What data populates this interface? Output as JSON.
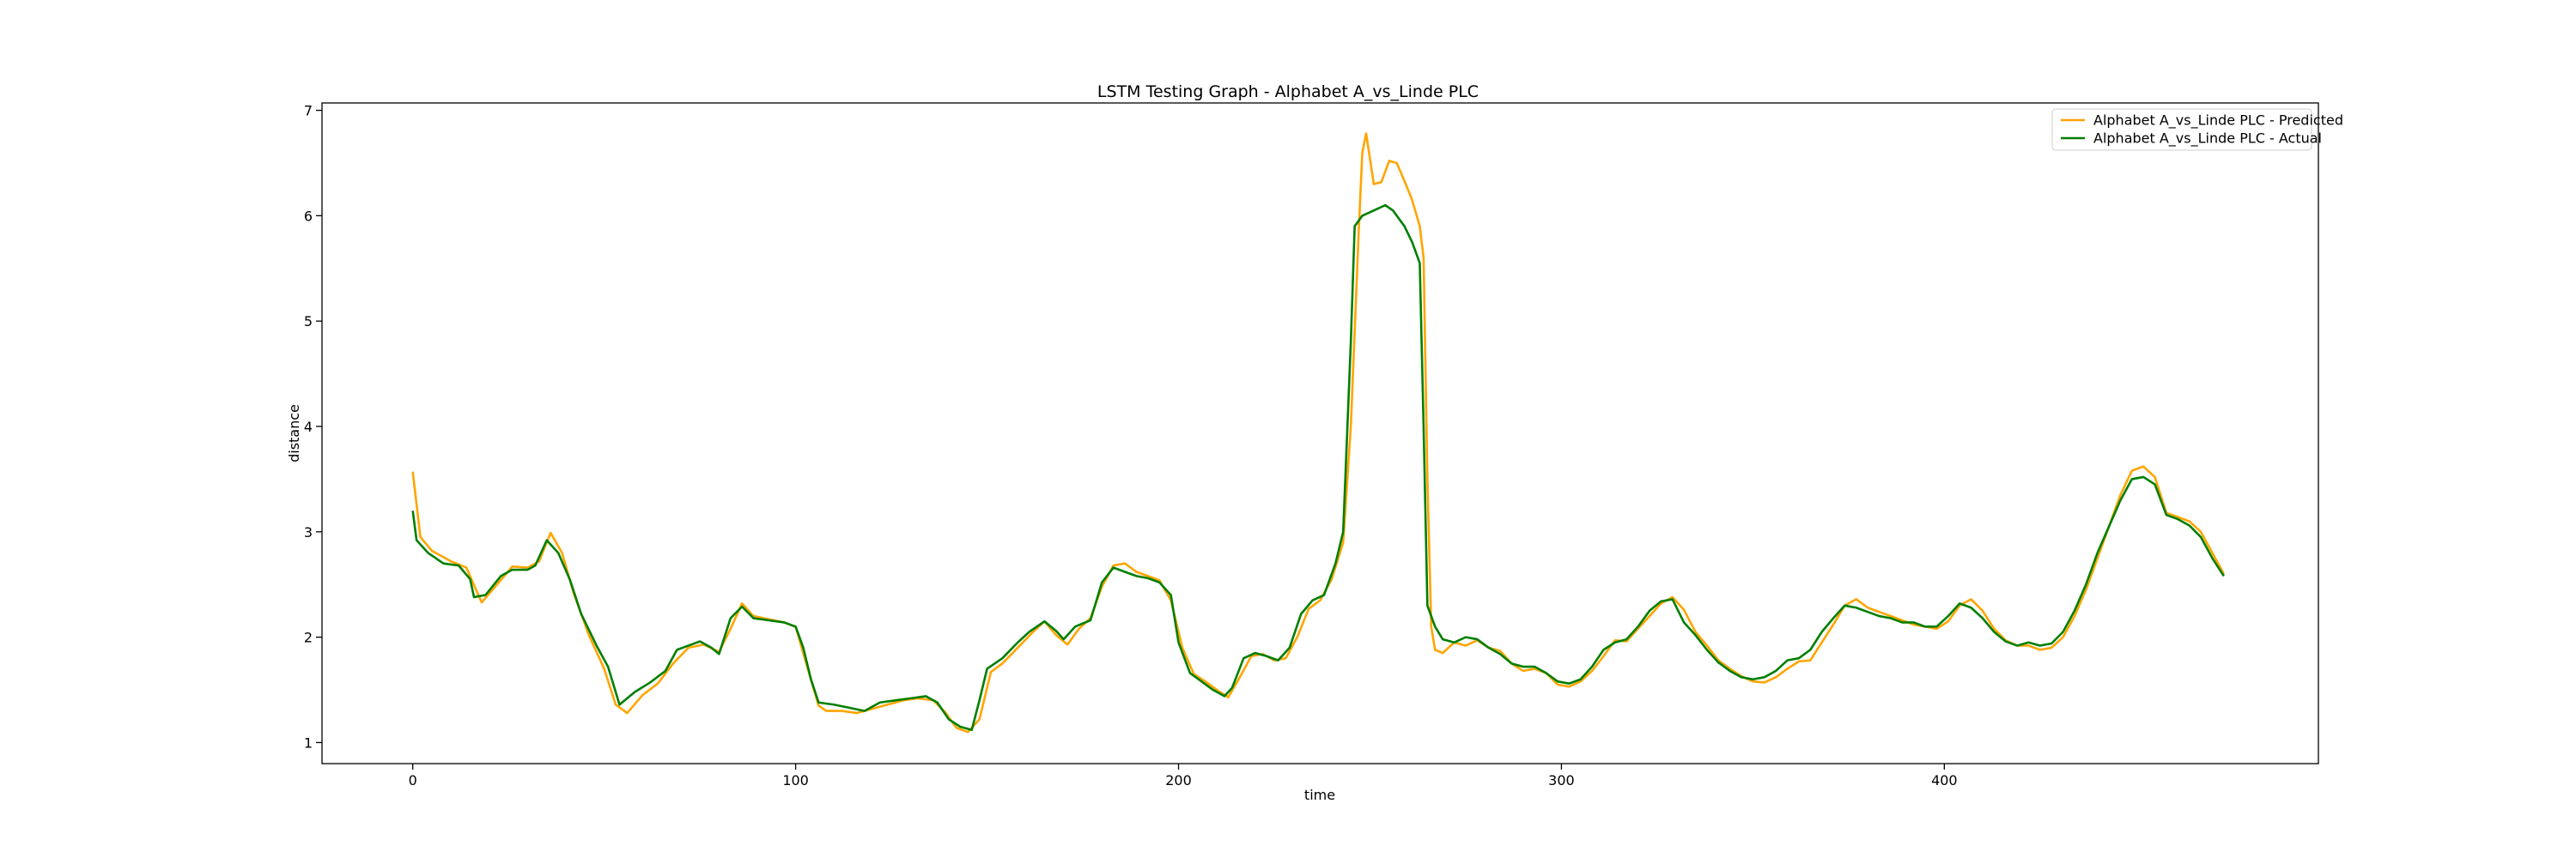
{
  "chart_data": {
    "type": "line",
    "title": "LSTM Testing Graph - Alphabet A_vs_Linde PLC",
    "xlabel": "time",
    "ylabel": "distance",
    "xlim": [
      -23.7,
      497.7
    ],
    "ylim": [
      0.8,
      7.07
    ],
    "xticks": [
      0,
      100,
      200,
      300,
      400
    ],
    "yticks": [
      1,
      2,
      3,
      4,
      5,
      6,
      7
    ],
    "grid": false,
    "legend_position": "top-right",
    "series": [
      {
        "name": "Alphabet A_vs_Linde PLC - Predicted",
        "color": "#FFA500",
        "points": [
          [
            0,
            3.57
          ],
          [
            2,
            2.95
          ],
          [
            5,
            2.82
          ],
          [
            10,
            2.72
          ],
          [
            14,
            2.66
          ],
          [
            18,
            2.33
          ],
          [
            22,
            2.5
          ],
          [
            26,
            2.67
          ],
          [
            30,
            2.66
          ],
          [
            33,
            2.72
          ],
          [
            36,
            2.99
          ],
          [
            39,
            2.8
          ],
          [
            42,
            2.42
          ],
          [
            46,
            2.02
          ],
          [
            50,
            1.7
          ],
          [
            53,
            1.36
          ],
          [
            56,
            1.28
          ],
          [
            60,
            1.45
          ],
          [
            64,
            1.56
          ],
          [
            68,
            1.75
          ],
          [
            72,
            1.9
          ],
          [
            76,
            1.93
          ],
          [
            80,
            1.86
          ],
          [
            83,
            2.08
          ],
          [
            86,
            2.32
          ],
          [
            89,
            2.2
          ],
          [
            93,
            2.17
          ],
          [
            97,
            2.14
          ],
          [
            100,
            2.1
          ],
          [
            103,
            1.72
          ],
          [
            106,
            1.35
          ],
          [
            108,
            1.3
          ],
          [
            112,
            1.3
          ],
          [
            116,
            1.28
          ],
          [
            120,
            1.32
          ],
          [
            124,
            1.36
          ],
          [
            128,
            1.4
          ],
          [
            132,
            1.42
          ],
          [
            136,
            1.4
          ],
          [
            139,
            1.29
          ],
          [
            142,
            1.14
          ],
          [
            145,
            1.1
          ],
          [
            148,
            1.22
          ],
          [
            151,
            1.67
          ],
          [
            154,
            1.75
          ],
          [
            158,
            1.9
          ],
          [
            162,
            2.05
          ],
          [
            165,
            2.15
          ],
          [
            168,
            2.02
          ],
          [
            171,
            1.93
          ],
          [
            174,
            2.08
          ],
          [
            177,
            2.18
          ],
          [
            180,
            2.48
          ],
          [
            183,
            2.68
          ],
          [
            186,
            2.7
          ],
          [
            189,
            2.62
          ],
          [
            192,
            2.58
          ],
          [
            195,
            2.54
          ],
          [
            198,
            2.35
          ],
          [
            201,
            1.9
          ],
          [
            204,
            1.65
          ],
          [
            207,
            1.58
          ],
          [
            210,
            1.5
          ],
          [
            213,
            1.43
          ],
          [
            216,
            1.62
          ],
          [
            219,
            1.82
          ],
          [
            222,
            1.84
          ],
          [
            225,
            1.78
          ],
          [
            228,
            1.8
          ],
          [
            231,
            2.0
          ],
          [
            234,
            2.27
          ],
          [
            237,
            2.35
          ],
          [
            240,
            2.55
          ],
          [
            243,
            2.9
          ],
          [
            245,
            4.0
          ],
          [
            247,
            5.8
          ],
          [
            248,
            6.6
          ],
          [
            249,
            6.78
          ],
          [
            251,
            6.3
          ],
          [
            253,
            6.32
          ],
          [
            255,
            6.52
          ],
          [
            257,
            6.5
          ],
          [
            259,
            6.33
          ],
          [
            261,
            6.15
          ],
          [
            263,
            5.9
          ],
          [
            264,
            5.6
          ],
          [
            265,
            3.5
          ],
          [
            266,
            2.1
          ],
          [
            267,
            1.88
          ],
          [
            269,
            1.85
          ],
          [
            272,
            1.95
          ],
          [
            275,
            1.92
          ],
          [
            278,
            1.97
          ],
          [
            281,
            1.9
          ],
          [
            284,
            1.87
          ],
          [
            287,
            1.75
          ],
          [
            290,
            1.68
          ],
          [
            293,
            1.7
          ],
          [
            296,
            1.66
          ],
          [
            299,
            1.55
          ],
          [
            302,
            1.53
          ],
          [
            305,
            1.58
          ],
          [
            308,
            1.68
          ],
          [
            311,
            1.82
          ],
          [
            314,
            1.97
          ],
          [
            317,
            1.96
          ],
          [
            320,
            2.08
          ],
          [
            323,
            2.2
          ],
          [
            326,
            2.32
          ],
          [
            329,
            2.38
          ],
          [
            332,
            2.26
          ],
          [
            335,
            2.05
          ],
          [
            338,
            1.92
          ],
          [
            341,
            1.78
          ],
          [
            344,
            1.7
          ],
          [
            347,
            1.63
          ],
          [
            350,
            1.58
          ],
          [
            353,
            1.57
          ],
          [
            356,
            1.62
          ],
          [
            359,
            1.7
          ],
          [
            362,
            1.77
          ],
          [
            365,
            1.78
          ],
          [
            368,
            1.95
          ],
          [
            371,
            2.12
          ],
          [
            374,
            2.3
          ],
          [
            377,
            2.36
          ],
          [
            380,
            2.28
          ],
          [
            383,
            2.24
          ],
          [
            386,
            2.2
          ],
          [
            389,
            2.16
          ],
          [
            392,
            2.12
          ],
          [
            395,
            2.1
          ],
          [
            398,
            2.08
          ],
          [
            401,
            2.15
          ],
          [
            404,
            2.3
          ],
          [
            407,
            2.36
          ],
          [
            410,
            2.25
          ],
          [
            413,
            2.08
          ],
          [
            416,
            1.97
          ],
          [
            419,
            1.92
          ],
          [
            422,
            1.92
          ],
          [
            425,
            1.88
          ],
          [
            428,
            1.9
          ],
          [
            431,
            2.0
          ],
          [
            434,
            2.2
          ],
          [
            437,
            2.45
          ],
          [
            440,
            2.75
          ],
          [
            443,
            3.05
          ],
          [
            446,
            3.35
          ],
          [
            449,
            3.58
          ],
          [
            452,
            3.62
          ],
          [
            455,
            3.52
          ],
          [
            458,
            3.18
          ],
          [
            461,
            3.14
          ],
          [
            464,
            3.1
          ],
          [
            467,
            3.0
          ],
          [
            470,
            2.8
          ],
          [
            473,
            2.6
          ]
        ]
      },
      {
        "name": "Alphabet A_vs_Linde PLC - Actual",
        "color": "#007F00",
        "points": [
          [
            0,
            3.2
          ],
          [
            1,
            2.92
          ],
          [
            4,
            2.8
          ],
          [
            8,
            2.7
          ],
          [
            12,
            2.68
          ],
          [
            15,
            2.55
          ],
          [
            16,
            2.38
          ],
          [
            19,
            2.4
          ],
          [
            23,
            2.58
          ],
          [
            26,
            2.64
          ],
          [
            30,
            2.64
          ],
          [
            32,
            2.68
          ],
          [
            35,
            2.92
          ],
          [
            38,
            2.8
          ],
          [
            41,
            2.55
          ],
          [
            44,
            2.22
          ],
          [
            48,
            1.92
          ],
          [
            51,
            1.72
          ],
          [
            54,
            1.36
          ],
          [
            58,
            1.48
          ],
          [
            62,
            1.57
          ],
          [
            66,
            1.68
          ],
          [
            69,
            1.88
          ],
          [
            72,
            1.92
          ],
          [
            75,
            1.96
          ],
          [
            78,
            1.9
          ],
          [
            80,
            1.84
          ],
          [
            83,
            2.18
          ],
          [
            86,
            2.29
          ],
          [
            89,
            2.18
          ],
          [
            93,
            2.16
          ],
          [
            97,
            2.14
          ],
          [
            100,
            2.1
          ],
          [
            102,
            1.9
          ],
          [
            104,
            1.6
          ],
          [
            106,
            1.38
          ],
          [
            110,
            1.36
          ],
          [
            114,
            1.33
          ],
          [
            118,
            1.3
          ],
          [
            122,
            1.38
          ],
          [
            126,
            1.4
          ],
          [
            130,
            1.42
          ],
          [
            134,
            1.44
          ],
          [
            137,
            1.38
          ],
          [
            140,
            1.22
          ],
          [
            143,
            1.15
          ],
          [
            146,
            1.12
          ],
          [
            148,
            1.4
          ],
          [
            150,
            1.7
          ],
          [
            154,
            1.8
          ],
          [
            158,
            1.95
          ],
          [
            161,
            2.05
          ],
          [
            165,
            2.15
          ],
          [
            168,
            2.06
          ],
          [
            170,
            1.98
          ],
          [
            173,
            2.1
          ],
          [
            177,
            2.16
          ],
          [
            180,
            2.52
          ],
          [
            183,
            2.66
          ],
          [
            186,
            2.62
          ],
          [
            189,
            2.58
          ],
          [
            192,
            2.56
          ],
          [
            195,
            2.52
          ],
          [
            198,
            2.4
          ],
          [
            200,
            1.95
          ],
          [
            203,
            1.66
          ],
          [
            206,
            1.58
          ],
          [
            209,
            1.5
          ],
          [
            212,
            1.44
          ],
          [
            214,
            1.52
          ],
          [
            217,
            1.8
          ],
          [
            220,
            1.85
          ],
          [
            223,
            1.82
          ],
          [
            226,
            1.78
          ],
          [
            229,
            1.9
          ],
          [
            232,
            2.22
          ],
          [
            235,
            2.35
          ],
          [
            238,
            2.4
          ],
          [
            241,
            2.7
          ],
          [
            243,
            3.0
          ],
          [
            245,
            4.8
          ],
          [
            246,
            5.9
          ],
          [
            248,
            6.0
          ],
          [
            251,
            6.05
          ],
          [
            254,
            6.1
          ],
          [
            256,
            6.05
          ],
          [
            259,
            5.9
          ],
          [
            261,
            5.75
          ],
          [
            263,
            5.55
          ],
          [
            264,
            4.0
          ],
          [
            265,
            2.3
          ],
          [
            267,
            2.1
          ],
          [
            269,
            1.98
          ],
          [
            272,
            1.95
          ],
          [
            275,
            2.0
          ],
          [
            278,
            1.98
          ],
          [
            281,
            1.9
          ],
          [
            284,
            1.84
          ],
          [
            287,
            1.75
          ],
          [
            290,
            1.72
          ],
          [
            293,
            1.72
          ],
          [
            296,
            1.66
          ],
          [
            299,
            1.58
          ],
          [
            302,
            1.56
          ],
          [
            305,
            1.6
          ],
          [
            308,
            1.72
          ],
          [
            311,
            1.88
          ],
          [
            314,
            1.95
          ],
          [
            317,
            1.98
          ],
          [
            320,
            2.1
          ],
          [
            323,
            2.25
          ],
          [
            326,
            2.34
          ],
          [
            329,
            2.36
          ],
          [
            332,
            2.14
          ],
          [
            335,
            2.02
          ],
          [
            338,
            1.88
          ],
          [
            341,
            1.76
          ],
          [
            344,
            1.68
          ],
          [
            347,
            1.62
          ],
          [
            350,
            1.6
          ],
          [
            353,
            1.62
          ],
          [
            356,
            1.68
          ],
          [
            359,
            1.78
          ],
          [
            362,
            1.8
          ],
          [
            365,
            1.88
          ],
          [
            368,
            2.05
          ],
          [
            371,
            2.18
          ],
          [
            374,
            2.3
          ],
          [
            377,
            2.28
          ],
          [
            380,
            2.24
          ],
          [
            383,
            2.2
          ],
          [
            386,
            2.18
          ],
          [
            389,
            2.14
          ],
          [
            392,
            2.14
          ],
          [
            395,
            2.1
          ],
          [
            398,
            2.1
          ],
          [
            401,
            2.2
          ],
          [
            404,
            2.32
          ],
          [
            407,
            2.28
          ],
          [
            410,
            2.18
          ],
          [
            413,
            2.05
          ],
          [
            416,
            1.96
          ],
          [
            419,
            1.92
          ],
          [
            422,
            1.95
          ],
          [
            425,
            1.92
          ],
          [
            428,
            1.94
          ],
          [
            431,
            2.05
          ],
          [
            434,
            2.25
          ],
          [
            437,
            2.5
          ],
          [
            440,
            2.8
          ],
          [
            443,
            3.05
          ],
          [
            446,
            3.3
          ],
          [
            449,
            3.5
          ],
          [
            452,
            3.52
          ],
          [
            455,
            3.45
          ],
          [
            458,
            3.16
          ],
          [
            461,
            3.12
          ],
          [
            464,
            3.06
          ],
          [
            467,
            2.95
          ],
          [
            470,
            2.75
          ],
          [
            473,
            2.58
          ]
        ]
      }
    ]
  }
}
